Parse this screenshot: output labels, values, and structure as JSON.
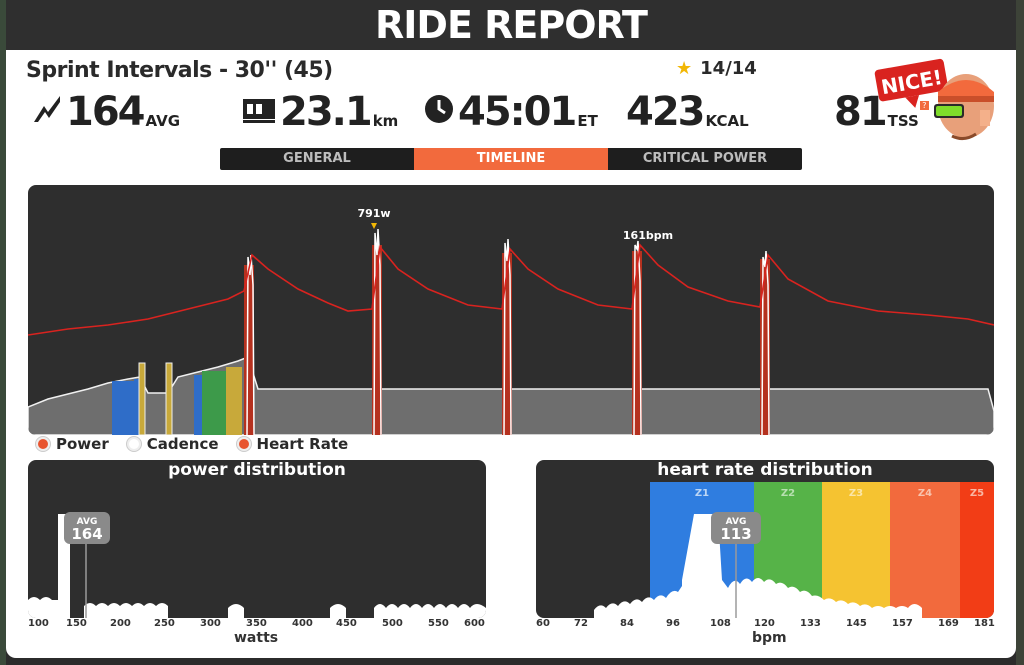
{
  "header": {
    "title": "RIDE REPORT"
  },
  "workout": {
    "title": "Sprint Intervals - 30'' (45)",
    "stars": "14/14"
  },
  "stats": {
    "power": {
      "value": "164",
      "unit": "AVG"
    },
    "distance": {
      "value": "23.1",
      "unit": "km"
    },
    "time": {
      "value": "45:01",
      "unit": "ET"
    },
    "calories": {
      "value": "423",
      "unit": "KCAL"
    },
    "tss": {
      "value": "81",
      "unit": "TSS",
      "help": "?"
    }
  },
  "badge": {
    "text": "NICE!"
  },
  "tabs": [
    {
      "label": "GENERAL",
      "active": false
    },
    {
      "label": "TIMELINE",
      "active": true
    },
    {
      "label": "CRITICAL POWER",
      "active": false
    }
  ],
  "timeline": {
    "peak_power_label": "791w",
    "peak_hr_label": "161bpm"
  },
  "legend": [
    {
      "label": "Power",
      "color": "#e8542f"
    },
    {
      "label": "Cadence",
      "color": "#ffffff"
    },
    {
      "label": "Heart Rate",
      "color": "#e8542f"
    }
  ],
  "power_dist": {
    "title": "power distribution",
    "avg_label": "AVG",
    "avg_value": "164",
    "ticks": [
      "100",
      "150",
      "200",
      "250",
      "300",
      "350",
      "400",
      "450",
      "500",
      "550",
      "600"
    ],
    "xlabel": "watts"
  },
  "hr_dist": {
    "title": "heart rate distribution",
    "avg_label": "AVG",
    "avg_value": "113",
    "zones": [
      "Z1",
      "Z2",
      "Z3",
      "Z4",
      "Z5"
    ],
    "ticks": [
      "60",
      "72",
      "84",
      "96",
      "108",
      "120",
      "133",
      "145",
      "157",
      "169",
      "181"
    ],
    "xlabel": "bpm"
  },
  "colors": {
    "accent": "#f26a3d",
    "power_bar": "#c0392b",
    "hr_line": "#d9231f",
    "zone_blue": "#2f7de0",
    "zone_green": "#56b348",
    "zone_yellow": "#f5c331",
    "zone_orange": "#f26a3d",
    "zone_red": "#f23d16"
  }
}
